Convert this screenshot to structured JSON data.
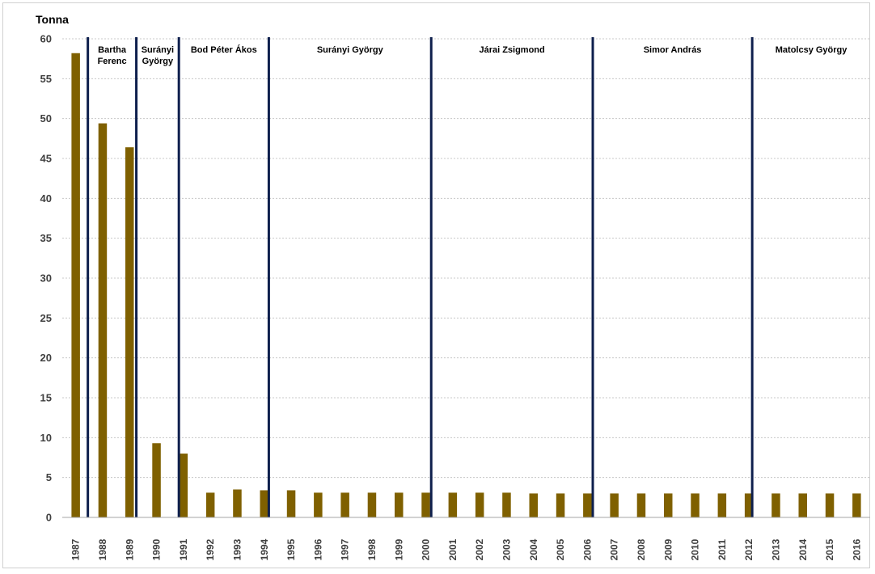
{
  "chart_data": {
    "type": "bar",
    "title": "",
    "ylabel": "Tonna",
    "xlabel": "",
    "ylim": [
      0,
      60
    ],
    "yticks": [
      0,
      5,
      10,
      15,
      20,
      25,
      30,
      35,
      40,
      45,
      50,
      55,
      60
    ],
    "grid": true,
    "bar_color": "#7f6000",
    "period_line_color": "#0e1f4d",
    "categories": [
      "1987",
      "1988",
      "1989",
      "1990",
      "1991",
      "1992",
      "1993",
      "1994",
      "1995",
      "1996",
      "1997",
      "1998",
      "1999",
      "2000",
      "2001",
      "2002",
      "2003",
      "2004",
      "2005",
      "2006",
      "2007",
      "2008",
      "2009",
      "2010",
      "2011",
      "2012",
      "2013",
      "2014",
      "2015",
      "2016"
    ],
    "values": [
      58.2,
      49.4,
      46.4,
      9.3,
      8.0,
      3.1,
      3.5,
      3.4,
      3.4,
      3.1,
      3.1,
      3.1,
      3.1,
      3.1,
      3.1,
      3.1,
      3.1,
      3.0,
      3.0,
      3.0,
      3.0,
      3.0,
      3.0,
      3.0,
      3.0,
      3.0,
      3.0,
      3.0,
      3.0,
      3.0
    ],
    "periods": [
      {
        "lines": [
          "Bartha",
          "Ferenc"
        ],
        "start_index": 0.45,
        "end_index": 2.25
      },
      {
        "lines": [
          "Surányi",
          "György"
        ],
        "start_index": 2.25,
        "end_index": 3.83
      },
      {
        "lines": [
          "Bod Péter Ákos"
        ],
        "start_index": 3.83,
        "end_index": 7.17
      },
      {
        "lines": [
          "Surányi György"
        ],
        "start_index": 7.17,
        "end_index": 13.2
      },
      {
        "lines": [
          "Járai Zsigmond"
        ],
        "start_index": 13.2,
        "end_index": 19.2
      },
      {
        "lines": [
          "Simor András"
        ],
        "start_index": 19.2,
        "end_index": 25.12
      },
      {
        "lines": [
          "Matolcsy György"
        ],
        "start_index": 25.12,
        "end_index": 29.5
      }
    ]
  }
}
